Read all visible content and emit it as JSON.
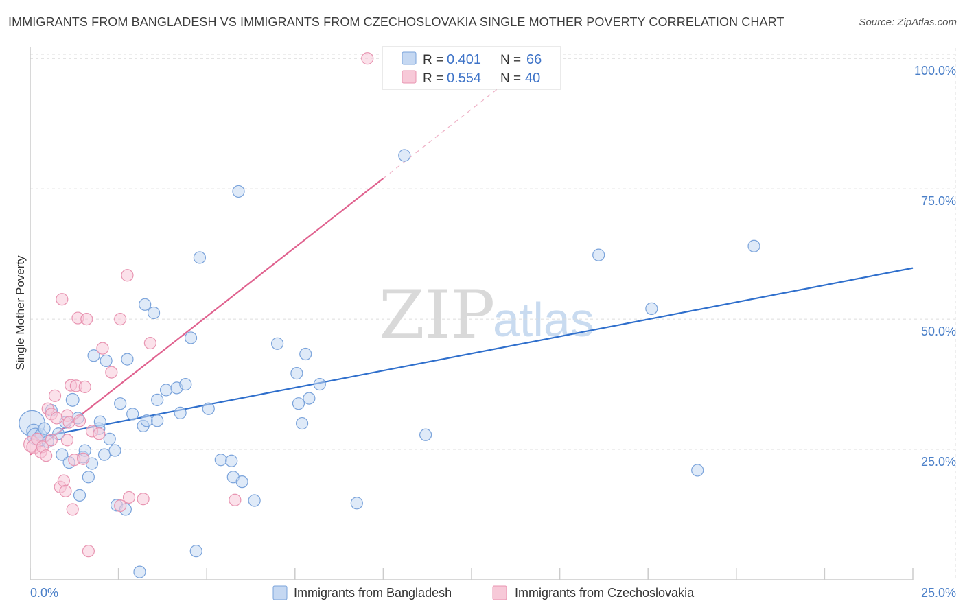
{
  "title": "IMMIGRANTS FROM BANGLADESH VS IMMIGRANTS FROM CZECHOSLOVAKIA SINGLE MOTHER POVERTY CORRELATION CHART",
  "source": "Source: ZipAtlas.com",
  "watermark": {
    "part1": "ZIP",
    "part2": "atlas"
  },
  "colors": {
    "blue": "#4a7fc8",
    "blue_fill": "#c5d8f2",
    "blue_line": "#2f6fcc",
    "pink": "#e86a93",
    "pink_fill": "#f7c9d8",
    "pink_line": "#e0628f",
    "grid": "#dcdcdc",
    "axis_text": "#4a7fc8"
  },
  "chart_data": {
    "type": "scatter",
    "title": "IMMIGRANTS FROM BANGLADESH VS IMMIGRANTS FROM CZECHOSLOVAKIA SINGLE MOTHER POVERTY CORRELATION CHART",
    "xlabel": "",
    "ylabel": "Single Mother Poverty",
    "xlim": [
      0,
      25
    ],
    "ylim": [
      0,
      102
    ],
    "x_tick_labels": [
      "0.0%",
      "25.0%"
    ],
    "y_ticks": [
      25,
      50,
      75,
      100
    ],
    "y_tick_labels": [
      "25.0%",
      "50.0%",
      "75.0%",
      "100.0%"
    ],
    "legend": [
      {
        "name": "Immigrants from Bangladesh",
        "r_label": "R =",
        "r": "0.401",
        "n_label": "N =",
        "n": "66"
      },
      {
        "name": "Immigrants from Czechoslovakia",
        "r_label": "R =",
        "r": "0.554",
        "n_label": "N =",
        "n": "40"
      }
    ],
    "series": [
      {
        "name": "Immigrants from Bangladesh",
        "color": "blue",
        "trend": {
          "x0": 0,
          "y0": 27.0,
          "x1": 25,
          "y1": 59.8
        },
        "points": [
          [
            0.05,
            30.0,
            22
          ],
          [
            0.1,
            28.5,
            12
          ],
          [
            0.15,
            27.5,
            14
          ],
          [
            0.25,
            27.0,
            12
          ],
          [
            0.3,
            27.8,
            10
          ],
          [
            0.4,
            29.0,
            10
          ],
          [
            0.5,
            26.5,
            10
          ],
          [
            0.6,
            32.5,
            10
          ],
          [
            0.8,
            28.0,
            10
          ],
          [
            0.9,
            24.0,
            10
          ],
          [
            1.0,
            30.2,
            10
          ],
          [
            1.1,
            22.5,
            10
          ],
          [
            1.2,
            34.5,
            11
          ],
          [
            1.35,
            31.0,
            10
          ],
          [
            1.4,
            16.2,
            10
          ],
          [
            1.5,
            23.5,
            10
          ],
          [
            1.55,
            24.8,
            10
          ],
          [
            1.65,
            19.7,
            10
          ],
          [
            1.75,
            22.3,
            10
          ],
          [
            1.8,
            43.0,
            10
          ],
          [
            1.95,
            29.0,
            10
          ],
          [
            1.98,
            30.3,
            10
          ],
          [
            2.1,
            24.0,
            10
          ],
          [
            2.15,
            42.0,
            10
          ],
          [
            2.25,
            27.0,
            10
          ],
          [
            2.4,
            24.8,
            10
          ],
          [
            2.45,
            14.3,
            10
          ],
          [
            2.55,
            33.8,
            10
          ],
          [
            2.7,
            13.5,
            10
          ],
          [
            2.75,
            42.3,
            10
          ],
          [
            2.9,
            31.8,
            10
          ],
          [
            3.1,
            1.5,
            10
          ],
          [
            3.2,
            29.5,
            10
          ],
          [
            3.25,
            52.8,
            10
          ],
          [
            3.3,
            30.5,
            10
          ],
          [
            3.5,
            51.2,
            10
          ],
          [
            3.6,
            30.5,
            10
          ],
          [
            3.6,
            34.5,
            10
          ],
          [
            3.85,
            36.4,
            10
          ],
          [
            4.15,
            36.8,
            10
          ],
          [
            4.25,
            32.0,
            10
          ],
          [
            4.4,
            37.5,
            10
          ],
          [
            4.55,
            46.4,
            10
          ],
          [
            4.7,
            5.5,
            10
          ],
          [
            4.8,
            61.8,
            10
          ],
          [
            5.05,
            32.8,
            10
          ],
          [
            5.4,
            23.0,
            10
          ],
          [
            5.7,
            22.8,
            10
          ],
          [
            5.75,
            19.7,
            10
          ],
          [
            5.9,
            74.5,
            10
          ],
          [
            6.0,
            18.8,
            10
          ],
          [
            6.35,
            15.2,
            10
          ],
          [
            7.0,
            45.3,
            10
          ],
          [
            7.55,
            39.6,
            10
          ],
          [
            7.6,
            33.8,
            10
          ],
          [
            7.7,
            30.0,
            10
          ],
          [
            7.8,
            43.3,
            10
          ],
          [
            7.9,
            34.8,
            10
          ],
          [
            8.2,
            37.5,
            10
          ],
          [
            9.25,
            14.7,
            10
          ],
          [
            10.6,
            81.4,
            10
          ],
          [
            11.2,
            27.8,
            10
          ],
          [
            16.1,
            62.3,
            10
          ],
          [
            17.6,
            52.0,
            10
          ],
          [
            18.9,
            21.0,
            10
          ],
          [
            20.5,
            64.0,
            10
          ]
        ]
      },
      {
        "name": "Immigrants from Czechoslovakia",
        "color": "pink",
        "trend": {
          "x0": 0,
          "y0": 24.0,
          "x1": 10.0,
          "y1": 77.0,
          "dash_x1": 13.3,
          "dash_y1": 94.5
        },
        "points": [
          [
            0.05,
            26.0,
            14
          ],
          [
            0.1,
            25.5,
            12
          ],
          [
            0.2,
            27.0,
            10
          ],
          [
            0.3,
            24.5,
            10
          ],
          [
            0.35,
            25.5,
            10
          ],
          [
            0.45,
            23.8,
            10
          ],
          [
            0.5,
            32.8,
            10
          ],
          [
            0.6,
            26.8,
            10
          ],
          [
            0.6,
            31.8,
            10
          ],
          [
            0.7,
            35.3,
            10
          ],
          [
            0.75,
            31.0,
            10
          ],
          [
            0.85,
            17.8,
            10
          ],
          [
            0.9,
            53.8,
            10
          ],
          [
            0.95,
            19.0,
            10
          ],
          [
            1.0,
            17.0,
            10
          ],
          [
            1.05,
            26.8,
            10
          ],
          [
            1.05,
            31.5,
            10
          ],
          [
            1.1,
            30.2,
            10
          ],
          [
            1.15,
            37.3,
            10
          ],
          [
            1.2,
            13.5,
            10
          ],
          [
            1.25,
            23.0,
            10
          ],
          [
            1.3,
            37.2,
            10
          ],
          [
            1.35,
            50.2,
            10
          ],
          [
            1.4,
            30.5,
            10
          ],
          [
            1.5,
            23.2,
            10
          ],
          [
            1.55,
            37.0,
            10
          ],
          [
            1.6,
            50.0,
            10
          ],
          [
            1.65,
            5.5,
            10
          ],
          [
            1.75,
            28.5,
            10
          ],
          [
            1.95,
            28.0,
            10
          ],
          [
            2.05,
            44.4,
            10
          ],
          [
            2.3,
            39.8,
            10
          ],
          [
            2.55,
            14.2,
            10
          ],
          [
            2.55,
            50.0,
            10
          ],
          [
            2.75,
            58.4,
            10
          ],
          [
            2.8,
            15.8,
            10
          ],
          [
            3.2,
            15.5,
            10
          ],
          [
            3.4,
            45.4,
            10
          ],
          [
            5.8,
            15.3,
            10
          ],
          [
            9.55,
            100.0,
            10
          ]
        ]
      }
    ]
  }
}
